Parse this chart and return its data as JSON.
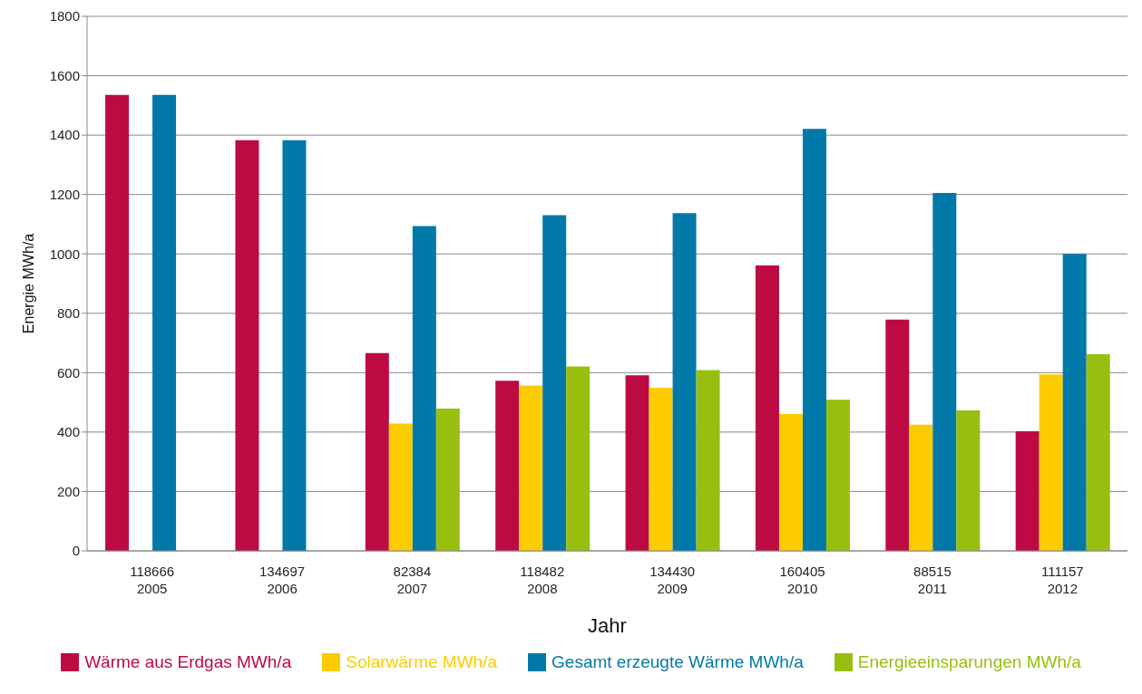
{
  "chart_data": {
    "type": "bar",
    "xlabel": "Jahr",
    "ylabel": "Energie MWh/a",
    "categories": [
      "118666\n2005",
      "134697\n2006",
      "82384\n2007",
      "118482\n2008",
      "134430\n2009",
      "160405\n2010",
      "88515\n2011",
      "111157\n2012"
    ],
    "series": [
      {
        "name": "Wärme aus Erdgas MWh/a",
        "color": "#bd0a43",
        "values": [
          1535,
          1383,
          666,
          573,
          591,
          961,
          779,
          403
        ]
      },
      {
        "name": "Solarwärme MWh/a",
        "color": "#fccc00",
        "values": [
          null,
          null,
          429,
          557,
          549,
          461,
          425,
          594
        ]
      },
      {
        "name": "Gesamt erzeugte Wärme MWh/a",
        "color": "#0079a8",
        "values": [
          1535,
          1383,
          1094,
          1130,
          1137,
          1421,
          1205,
          1000
        ]
      },
      {
        "name": "Energieeinsparungen MWh/a",
        "color": "#98bf0e",
        "values": [
          null,
          null,
          479,
          621,
          609,
          509,
          473,
          662
        ]
      }
    ],
    "ylim": [
      0,
      1800
    ],
    "yticks": [
      0,
      200,
      400,
      600,
      800,
      1000,
      1200,
      1400,
      1600,
      1800
    ],
    "grid": "y",
    "legend": "bottom"
  }
}
